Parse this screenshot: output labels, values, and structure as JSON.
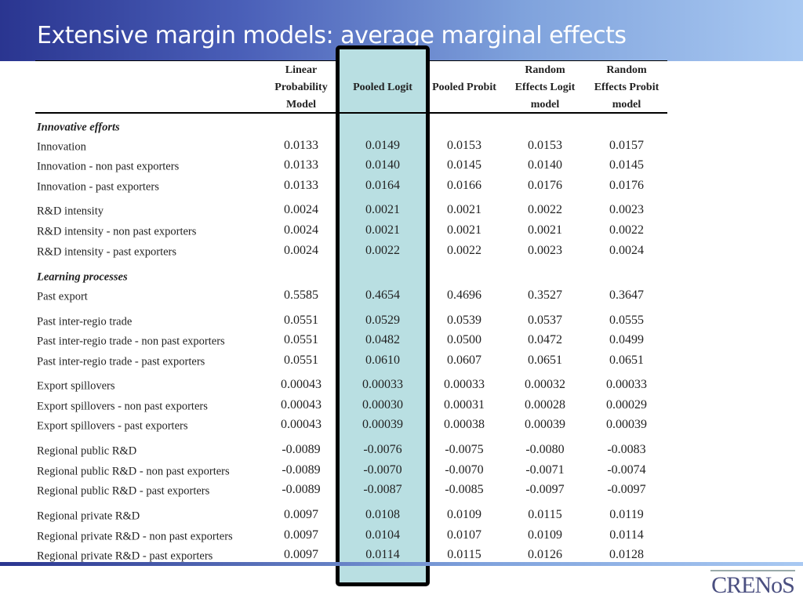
{
  "title": "Extensive margin models: average marginal effects",
  "columns": [
    {
      "lines": [
        "Linear",
        "Probability",
        "Model"
      ]
    },
    {
      "lines": [
        "",
        "Pooled Logit",
        ""
      ]
    },
    {
      "lines": [
        "",
        "Pooled Probit",
        ""
      ]
    },
    {
      "lines": [
        "Random",
        "Effects Logit",
        "model"
      ]
    },
    {
      "lines": [
        "Random",
        "Effects Probit",
        "model"
      ]
    }
  ],
  "highlighted_column": "Pooled Logit",
  "rows": [
    {
      "section": "Innovative efforts"
    },
    {
      "label": "Innovation",
      "values": [
        "0.0133",
        "0.0149",
        "0.0153",
        "0.0153",
        "0.0157"
      ]
    },
    {
      "label": "Innovation - non past exporters",
      "values": [
        "0.0133",
        "0.0140",
        "0.0145",
        "0.0140",
        "0.0145"
      ]
    },
    {
      "label": "Innovation - past exporters",
      "values": [
        "0.0133",
        "0.0164",
        "0.0166",
        "0.0176",
        "0.0176"
      ]
    },
    {
      "label": "R&D intensity",
      "values": [
        "0.0024",
        "0.0021",
        "0.0021",
        "0.0022",
        "0.0023"
      ]
    },
    {
      "label": "R&D intensity - non past exporters",
      "values": [
        "0.0024",
        "0.0021",
        "0.0021",
        "0.0021",
        "0.0022"
      ]
    },
    {
      "label": "R&D intensity - past exporters",
      "values": [
        "0.0024",
        "0.0022",
        "0.0022",
        "0.0023",
        "0.0024"
      ]
    },
    {
      "section": "Learning processes"
    },
    {
      "label": "Past export",
      "values": [
        "0.5585",
        "0.4654",
        "0.4696",
        "0.3527",
        "0.3647"
      ]
    },
    {
      "label": "Past inter-regio trade",
      "values": [
        "0.0551",
        "0.0529",
        "0.0539",
        "0.0537",
        "0.0555"
      ]
    },
    {
      "label": "Past inter-regio trade - non past exporters",
      "values": [
        "0.0551",
        "0.0482",
        "0.0500",
        "0.0472",
        "0.0499"
      ]
    },
    {
      "label": "Past inter-regio trade - past exporters",
      "values": [
        "0.0551",
        "0.0610",
        "0.0607",
        "0.0651",
        "0.0651"
      ]
    },
    {
      "label": "Export spillovers",
      "values": [
        "0.00043",
        "0.00033",
        "0.00033",
        "0.00032",
        "0.00033"
      ]
    },
    {
      "label": "Export spillovers - non past exporters",
      "values": [
        "0.00043",
        "0.00030",
        "0.00031",
        "0.00028",
        "0.00029"
      ]
    },
    {
      "label": "Export spillovers - past exporters",
      "values": [
        "0.00043",
        "0.00039",
        "0.00038",
        "0.00039",
        "0.00039"
      ]
    },
    {
      "label": "Regional public R&D",
      "values": [
        "-0.0089",
        "-0.0076",
        "-0.0075",
        "-0.0080",
        "-0.0083"
      ]
    },
    {
      "label": "Regional public R&D - non past exporters",
      "values": [
        "-0.0089",
        "-0.0070",
        "-0.0070",
        "-0.0071",
        "-0.0074"
      ]
    },
    {
      "label": "Regional public R&D - past exporters",
      "values": [
        "-0.0089",
        "-0.0087",
        "-0.0085",
        "-0.0097",
        "-0.0097"
      ]
    },
    {
      "label": "Regional private R&D",
      "values": [
        "0.0097",
        "0.0108",
        "0.0109",
        "0.0115",
        "0.0119"
      ]
    },
    {
      "label": "Regional private R&D - non past exporters",
      "values": [
        "0.0097",
        "0.0104",
        "0.0107",
        "0.0109",
        "0.0114"
      ]
    },
    {
      "label": "Regional private R&D - past exporters",
      "values": [
        "0.0097",
        "0.0114",
        "0.0115",
        "0.0126",
        "0.0128"
      ]
    }
  ],
  "logo": "CRENoS",
  "colors": {
    "title_bar": "#2a3590",
    "highlight_fill": "#b9dfe2",
    "highlight_border": "#000000"
  }
}
